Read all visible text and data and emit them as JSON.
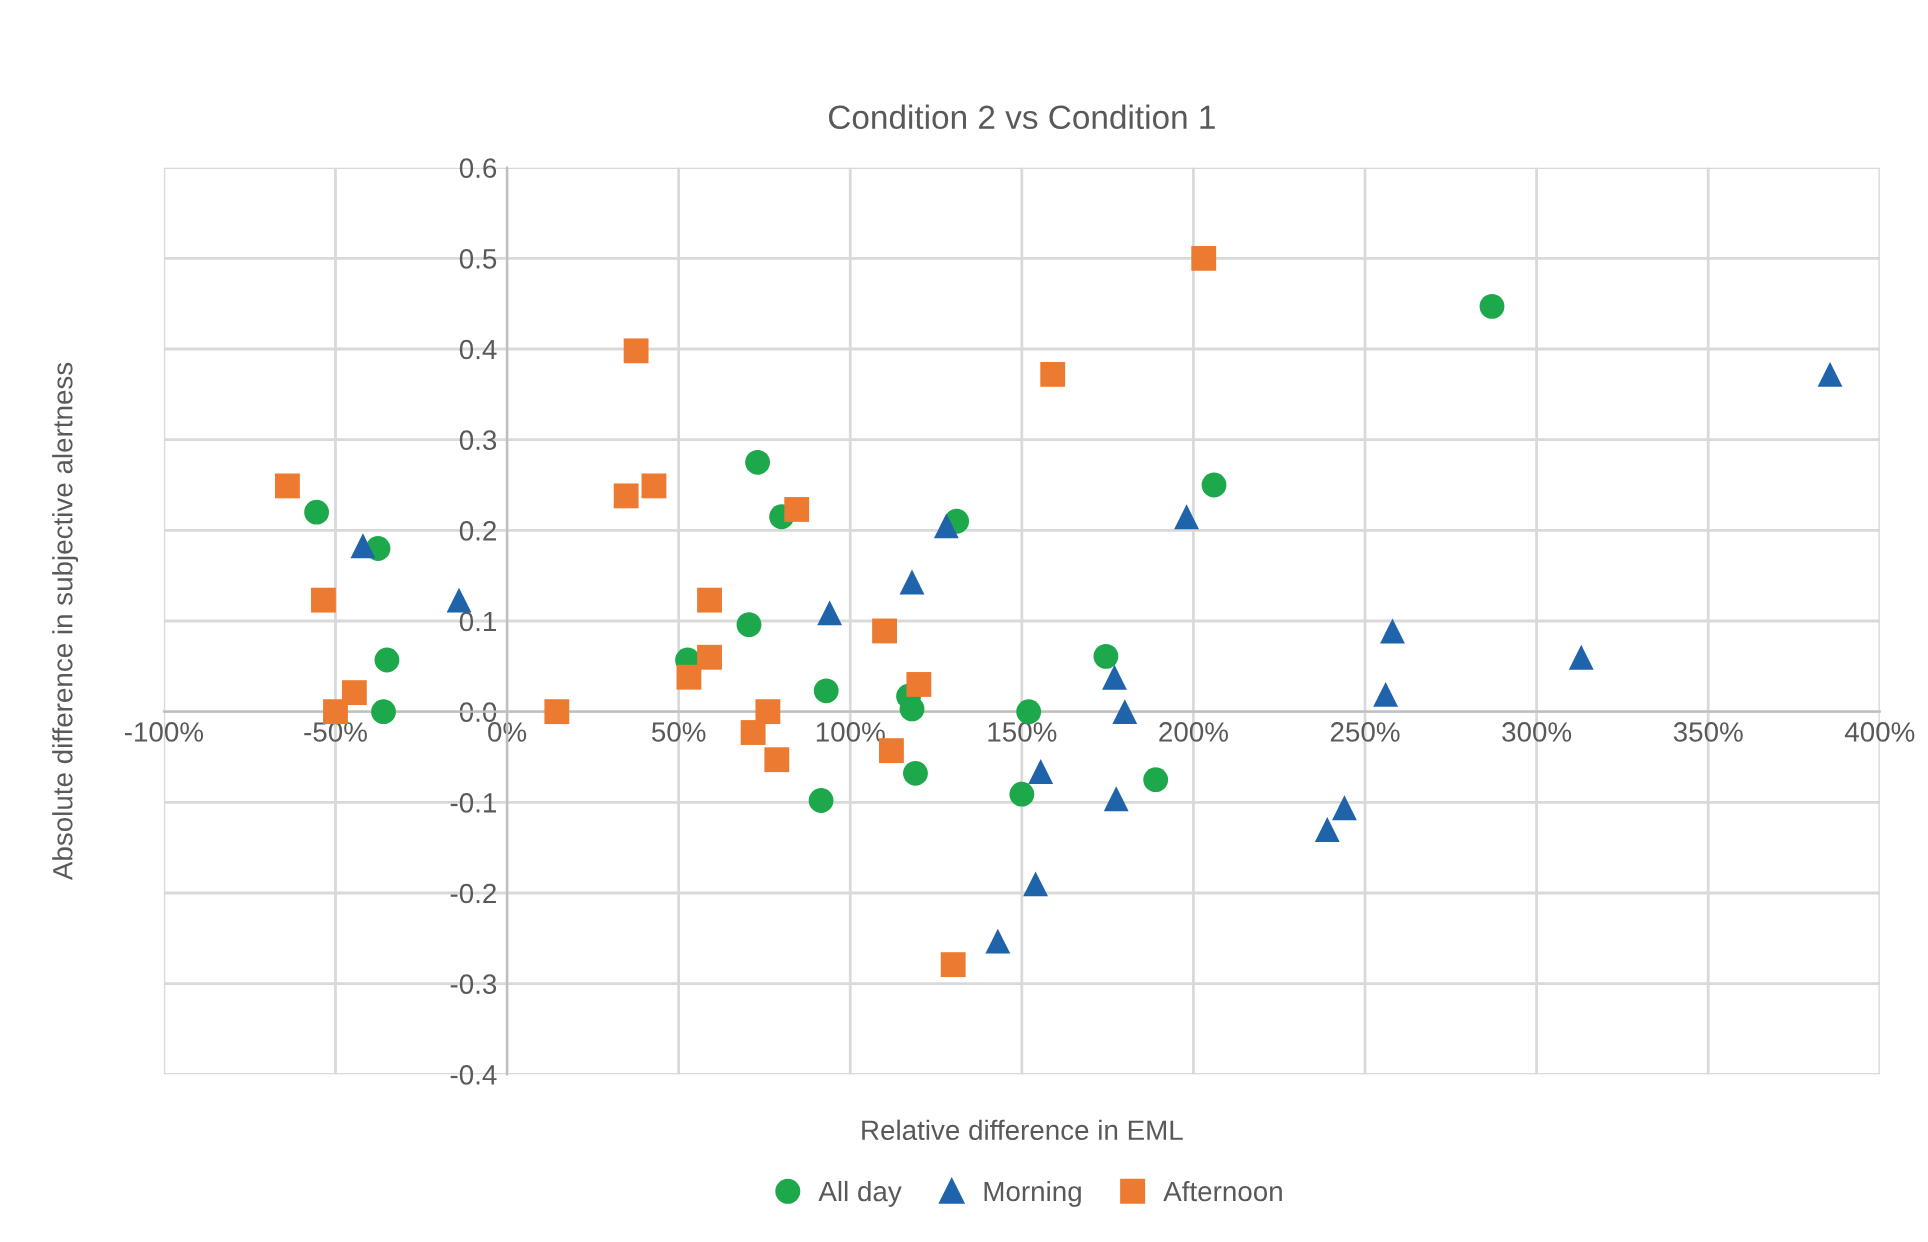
{
  "chart_data": {
    "type": "scatter",
    "title": "Condition 2 vs Condition 1",
    "xlabel": "Relative difference in EML",
    "ylabel": "Absolute difference in subjective alertness",
    "series": [
      {
        "name": "All day",
        "color": "#1ea84c",
        "marker": "circle",
        "x": [
          -55.5,
          -37.6,
          -35,
          -36,
          73,
          80,
          70.5,
          52.6,
          131,
          206,
          174.5,
          93,
          117,
          118,
          152,
          91.5,
          119,
          150,
          189,
          287
        ],
        "values": [
          0.22,
          0.18,
          0.057,
          0,
          0.275,
          0.215,
          0.096,
          0.057,
          0.21,
          0.25,
          0.061,
          0.023,
          0.017,
          0.003,
          0,
          -0.098,
          -0.068,
          -0.091,
          -0.075,
          0.447
        ]
      },
      {
        "name": "Morning",
        "color": "#1f63ab",
        "marker": "triangle",
        "x": [
          -42,
          -14,
          128,
          118,
          94,
          198,
          258,
          256,
          177,
          180,
          385.5,
          313,
          155.5,
          177.5,
          154,
          244,
          239,
          143
        ],
        "values": [
          0.183,
          0.123,
          0.205,
          0.143,
          0.109,
          0.215,
          0.089,
          0.019,
          0.038,
          0,
          0.372,
          0.06,
          -0.066,
          -0.096,
          -0.19,
          -0.106,
          -0.13,
          -0.253
        ]
      },
      {
        "name": "Afternoon",
        "color": "#ec7a30",
        "marker": "square",
        "x": [
          -64,
          -53.5,
          -44.5,
          -50,
          14.5,
          37.6,
          34.7,
          42.8,
          59,
          59,
          53,
          84.4,
          76,
          71.7,
          78.6,
          203,
          159,
          110,
          120,
          112,
          130
        ],
        "values": [
          0.249,
          0.123,
          0.021,
          0,
          0,
          0.398,
          0.238,
          0.249,
          0.123,
          0.06,
          0.038,
          0.223,
          0,
          -0.023,
          -0.053,
          0.5,
          0.372,
          0.089,
          0.03,
          -0.043,
          -0.279
        ]
      }
    ],
    "xlim": [
      -100,
      400
    ],
    "xticks": [
      {
        "value": -100,
        "label": "-100%"
      },
      {
        "value": -50,
        "label": "-50%"
      },
      {
        "value": 0,
        "label": "0%"
      },
      {
        "value": 50,
        "label": "50%"
      },
      {
        "value": 100,
        "label": "100%"
      },
      {
        "value": 150,
        "label": "150%"
      },
      {
        "value": 200,
        "label": "200%"
      },
      {
        "value": 250,
        "label": "250%"
      },
      {
        "value": 300,
        "label": "300%"
      },
      {
        "value": 350,
        "label": "350%"
      },
      {
        "value": 400,
        "label": "400%"
      }
    ],
    "ylim": [
      -0.4,
      0.6
    ],
    "yticks": [
      -0.4,
      -0.3,
      -0.2,
      -0.1,
      {
        "value": 0,
        "label": "0.0"
      },
      0.1,
      0.2,
      0.3,
      0.4,
      0.5,
      0.6
    ],
    "grid": true,
    "legend": "bottom"
  }
}
